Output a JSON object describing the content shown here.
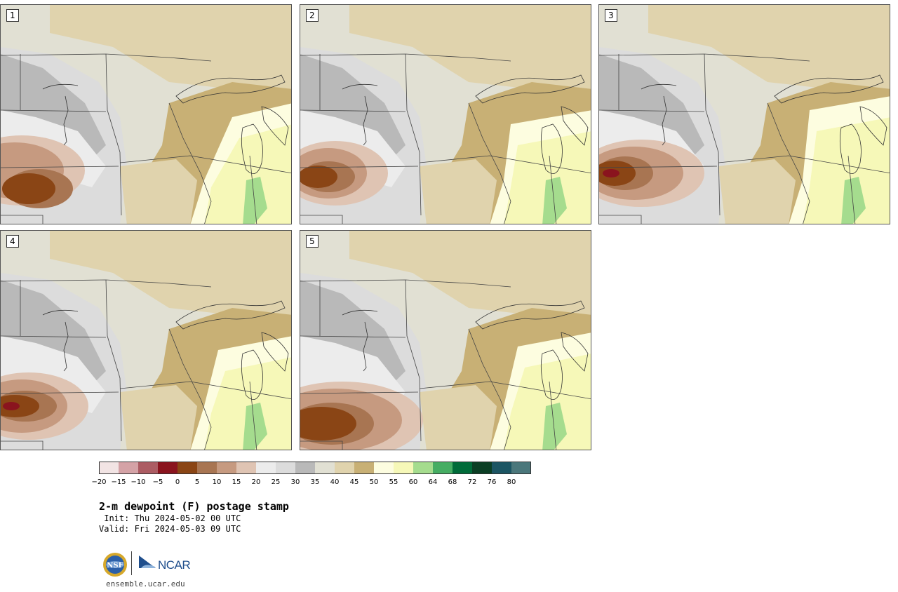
{
  "title": "2-m dewpoint (F) postage stamp",
  "init": " Init: Thu 2024-05-02 00 UTC",
  "valid": "Valid: Fri 2024-05-03 09 UTC",
  "site": "ensemble.ucar.edu",
  "logos": {
    "nsf": "NSF",
    "ncar": "NCAR"
  },
  "panels": [
    {
      "label": "1"
    },
    {
      "label": "2"
    },
    {
      "label": "3"
    },
    {
      "label": "4"
    },
    {
      "label": "5"
    }
  ],
  "colorbar": {
    "ticks": [
      "−20",
      "−15",
      "−10",
      "−5",
      "0",
      "5",
      "10",
      "15",
      "20",
      "25",
      "30",
      "35",
      "40",
      "45",
      "50",
      "55",
      "60",
      "64",
      "68",
      "72",
      "76",
      "80"
    ],
    "colors": [
      "#f2e4e4",
      "#d4a2a6",
      "#ac5c63",
      "#8a141e",
      "#8a4515",
      "#a87552",
      "#c69a80",
      "#dfc4b3",
      "#ececec",
      "#dcdcdc",
      "#b9b9b9",
      "#e1e0d3",
      "#e0d3ad",
      "#c8b075",
      "#fdfde0",
      "#f6f8b8",
      "#a5dc8e",
      "#46ad63",
      "#006b39",
      "#0b3e24",
      "#1c5563",
      "#4b777b"
    ]
  }
}
